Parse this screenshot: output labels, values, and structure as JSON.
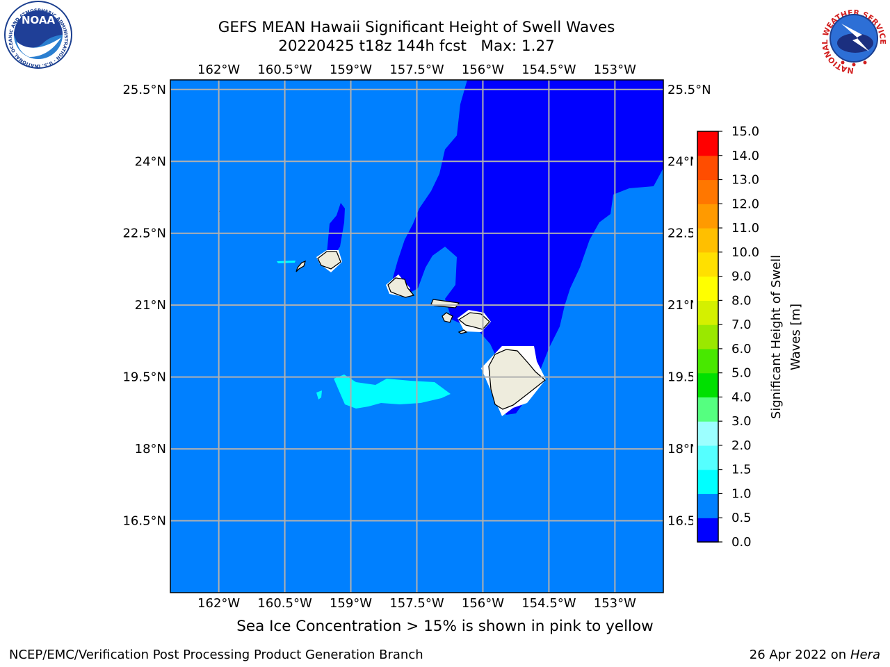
{
  "title": {
    "line1": "GEFS MEAN Hawaii Significant Height of Swell Waves",
    "line2": "20220425 t18z 144h fcst   Max: 1.27"
  },
  "logos": {
    "left": {
      "icon": "noaa-logo",
      "text": "NOAA",
      "ring_text": "NATIONAL OCEANIC AND ATMOSPHERIC ADMINISTRATION · U.S. DEPARTMENT OF COMMERCE"
    },
    "right": {
      "icon": "national-weather-service-logo",
      "ring_text": "NATIONAL WEATHER SERVICE"
    }
  },
  "map": {
    "region": "Hawaii",
    "projection": "lat-lon",
    "lon_range": [
      -163.1,
      -151.9
    ],
    "lat_range": [
      15.0,
      25.7
    ],
    "grid": true,
    "lon_ticks": [
      "162°W",
      "160.5°W",
      "159°W",
      "157.5°W",
      "156°W",
      "154.5°W",
      "153°W"
    ],
    "lat_ticks": [
      "25.5°N",
      "24°N",
      "22.5°N",
      "21°N",
      "19.5°N",
      "18°N",
      "16.5°N"
    ],
    "land_color": "#eeecdd",
    "ocean_band_colors": {
      "0.0-0.5": "#0000ff",
      "0.5-1.0": "#0080ff",
      "1.0-1.5": "#00ffff"
    }
  },
  "colorbar": {
    "label": "Significant Height of Swell Waves [m]",
    "tick_labels": [
      "0.0",
      "0.5",
      "1.0",
      "1.5",
      "2.0",
      "3.0",
      "4.0",
      "5.0",
      "6.0",
      "7.0",
      "8.0",
      "9.0",
      "10.0",
      "11.0",
      "12.0",
      "13.0",
      "14.0",
      "15.0"
    ],
    "colors": [
      "#0000ff",
      "#0080ff",
      "#00ffff",
      "#55ffff",
      "#9cffff",
      "#55ff80",
      "#00e000",
      "#48e800",
      "#9ae800",
      "#d4f000",
      "#ffff00",
      "#ffe000",
      "#ffbf00",
      "#ff9a00",
      "#ff7700",
      "#ff4d00",
      "#ff0000"
    ]
  },
  "caption": "Sea Ice Concentration > 15% is shown in pink to yellow",
  "footer": {
    "left": "NCEP/EMC/Verification Post Processing Product Generation Branch",
    "date": "26 Apr 2022 on ",
    "host": "Hera"
  }
}
